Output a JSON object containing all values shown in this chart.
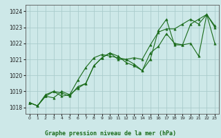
{
  "title": "Graphe pression niveau de la mer (hPa)",
  "bg_color": "#cde8e8",
  "grid_color": "#aacccc",
  "line_color": "#1a6b1a",
  "xlim": [
    -0.5,
    23.5
  ],
  "ylim": [
    1017.6,
    1024.4
  ],
  "yticks": [
    1018,
    1019,
    1020,
    1021,
    1022,
    1023,
    1024
  ],
  "xticks": [
    0,
    1,
    2,
    3,
    4,
    5,
    6,
    7,
    8,
    9,
    10,
    11,
    12,
    13,
    14,
    15,
    16,
    17,
    18,
    19,
    20,
    21,
    22,
    23
  ],
  "series": [
    [
      1018.3,
      1018.1,
      1018.7,
      1019.0,
      1018.7,
      1018.8,
      1019.7,
      1020.5,
      1021.1,
      1021.3,
      1021.2,
      1021.1,
      1021.0,
      1021.1,
      1021.0,
      1021.9,
      1022.7,
      1022.9,
      1022.9,
      1023.2,
      1023.5,
      1023.2,
      1023.8,
      1023.0
    ],
    [
      1018.3,
      1018.1,
      1018.8,
      1019.0,
      1018.9,
      1018.7,
      1019.3,
      1019.5,
      1020.6,
      1021.1,
      1021.4,
      1021.2,
      1020.8,
      1020.6,
      1020.3,
      1021.0,
      1022.8,
      1023.5,
      1021.9,
      1021.9,
      1023.2,
      1023.5,
      1023.8,
      1023.1
    ],
    [
      1018.3,
      1018.1,
      1018.7,
      1018.6,
      1019.0,
      1018.8,
      1019.2,
      1019.5,
      1020.6,
      1021.1,
      1021.4,
      1021.0,
      1021.0,
      1020.7,
      1020.3,
      1021.4,
      1021.8,
      1022.6,
      1022.0,
      1021.9,
      1022.0,
      1021.2,
      1023.8,
      1022.0
    ]
  ]
}
